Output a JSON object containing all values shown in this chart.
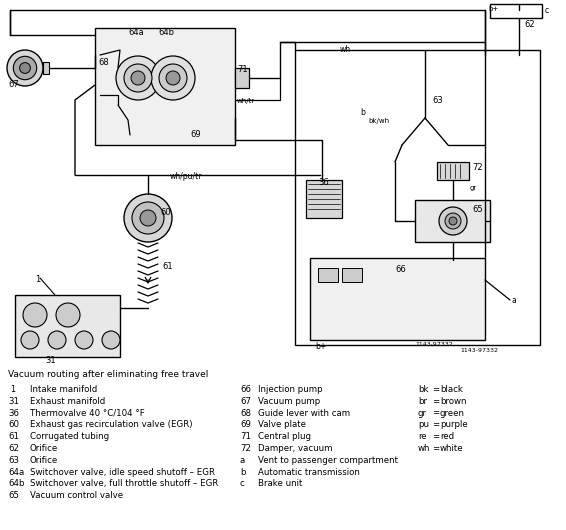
{
  "bg_color": "#ffffff",
  "line_color": "#000000",
  "legend_title": "Vacuum routing after eliminating free travel",
  "legend_col1": [
    [
      " 1",
      "Intake manifold"
    ],
    [
      "31",
      "Exhaust manifold"
    ],
    [
      "36",
      "Thermovalve 40 °C/104 °F"
    ],
    [
      "60",
      "Exhaust gas recirculation valve (EGR)"
    ],
    [
      "61",
      "Corrugated tubing"
    ],
    [
      "62",
      "Orifice"
    ],
    [
      "63",
      "Orifice"
    ],
    [
      "64a",
      "Switchover valve, idle speed shutoff – EGR"
    ],
    [
      "64b",
      "Switchover valve, full throttle shutoff – EGR"
    ],
    [
      "65",
      "Vacuum control valve"
    ]
  ],
  "legend_col2": [
    [
      "66",
      "Injection pump"
    ],
    [
      "67",
      "Vacuum pump"
    ],
    [
      "68",
      "Guide lever with cam"
    ],
    [
      "69",
      "Valve plate"
    ],
    [
      "71",
      "Central plug"
    ],
    [
      "72",
      "Damper, vacuum"
    ],
    [
      "a",
      "Vent to passenger compartment"
    ],
    [
      "b",
      "Automatic transmission"
    ],
    [
      "c",
      "Brake unit"
    ]
  ],
  "legend_col3": [
    [
      "bk",
      "black"
    ],
    [
      "br",
      "brown"
    ],
    [
      "gr",
      "green"
    ],
    [
      "pu",
      "purple"
    ],
    [
      "re",
      "red"
    ],
    [
      "wh",
      "white"
    ]
  ]
}
